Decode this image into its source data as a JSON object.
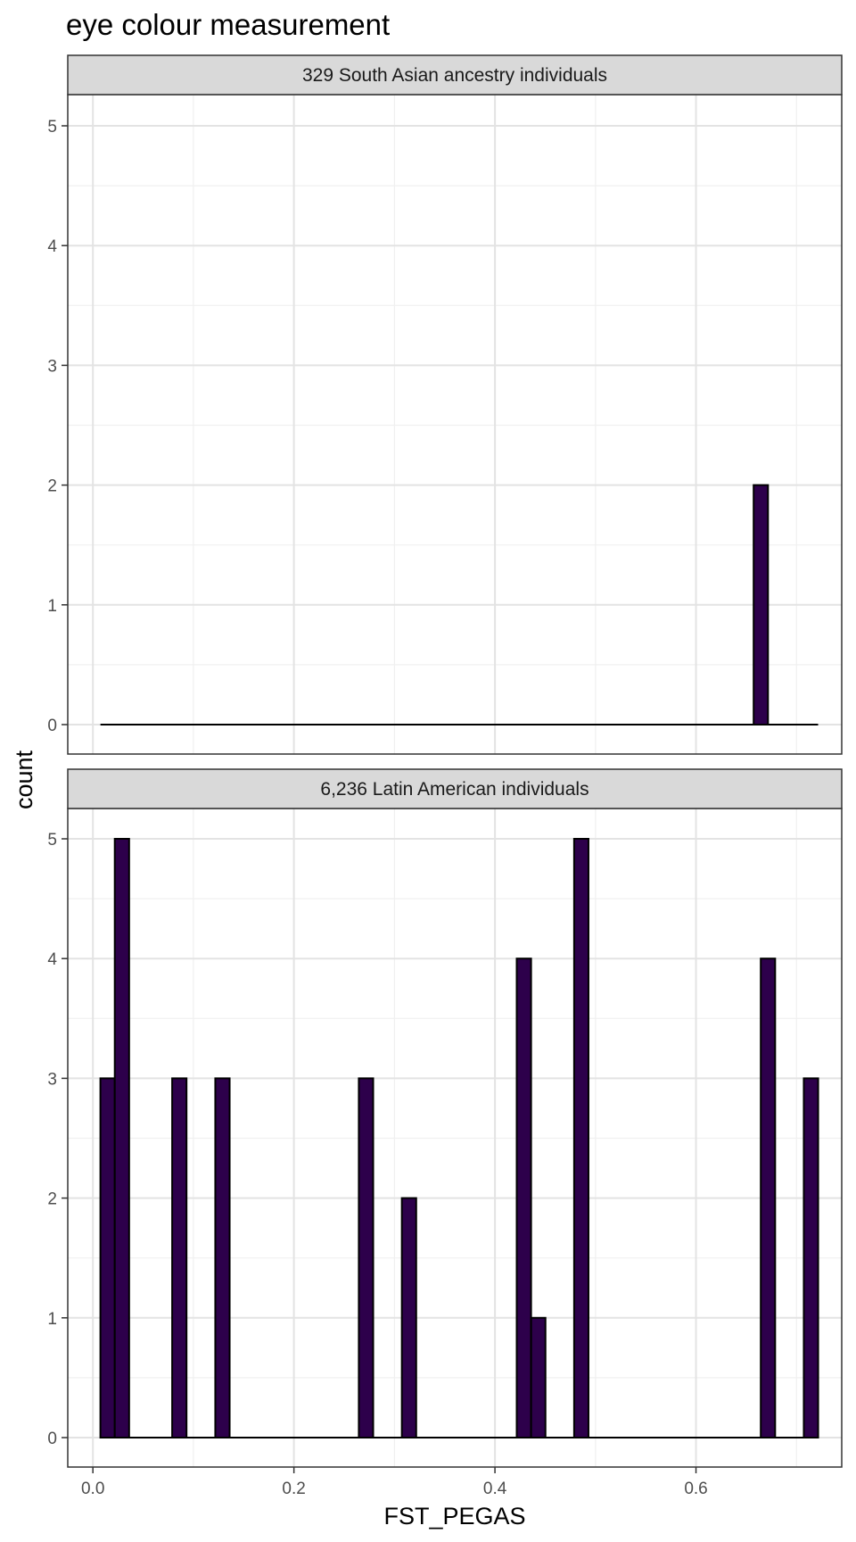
{
  "title": "eye colour measurement",
  "chart_data": {
    "type": "bar",
    "title": "eye colour measurement",
    "xlabel": "FST_PEGAS",
    "ylabel": "count",
    "xlim": [
      -0.025,
      0.745
    ],
    "ylim": [
      0,
      5
    ],
    "x_ticks": [
      0.0,
      0.2,
      0.4,
      0.6
    ],
    "x_tick_labels": [
      "0.0",
      "0.2",
      "0.4",
      "0.6"
    ],
    "y_ticks": [
      0,
      1,
      2,
      3,
      4,
      5
    ],
    "y_tick_labels": [
      "0",
      "1",
      "2",
      "3",
      "4",
      "5"
    ],
    "bin_width": 0.01428,
    "bin_range": [
      0.0075,
      0.7215
    ],
    "grid": true,
    "bar_fill": "#2d004b",
    "bar_outline": "#000000",
    "strip_fill": "#d9d9d9",
    "panels": [
      {
        "label": "329 South Asian ancestry individuals",
        "bins": [
          {
            "x": 0.6645,
            "count": 2
          }
        ]
      },
      {
        "label": "6,236 Latin American individuals",
        "bins": [
          {
            "x": 0.0146,
            "count": 3
          },
          {
            "x": 0.0289,
            "count": 5
          },
          {
            "x": 0.086,
            "count": 3
          },
          {
            "x": 0.1289,
            "count": 3
          },
          {
            "x": 0.2717,
            "count": 3
          },
          {
            "x": 0.3145,
            "count": 2
          },
          {
            "x": 0.4288,
            "count": 4
          },
          {
            "x": 0.4431,
            "count": 1
          },
          {
            "x": 0.4859,
            "count": 5
          },
          {
            "x": 0.6716,
            "count": 4
          },
          {
            "x": 0.7144,
            "count": 3
          }
        ]
      }
    ]
  }
}
